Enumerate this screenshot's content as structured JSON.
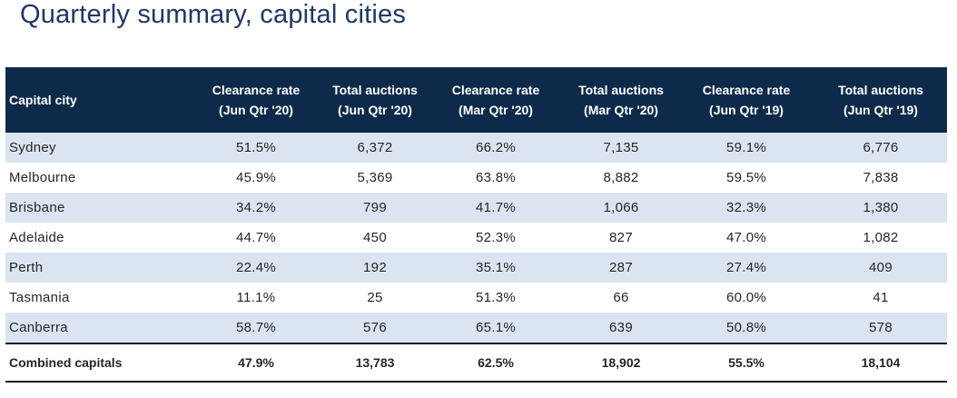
{
  "title": "Quarterly summary, capital cities",
  "table": {
    "headers": [
      {
        "line1": "Capital city",
        "line2": ""
      },
      {
        "line1": "Clearance rate",
        "line2": "(Jun Qtr '20)"
      },
      {
        "line1": "Total auctions",
        "line2": "(Jun Qtr '20)"
      },
      {
        "line1": "Clearance rate",
        "line2": "(Mar Qtr '20)"
      },
      {
        "line1": "Total auctions",
        "line2": "(Mar Qtr '20)"
      },
      {
        "line1": "Clearance rate",
        "line2": "(Jun Qtr '19)"
      },
      {
        "line1": "Total auctions",
        "line2": "(Jun Qtr '19)"
      }
    ],
    "rows": [
      [
        "Sydney",
        "51.5%",
        "6,372",
        "66.2%",
        "7,135",
        "59.1%",
        "6,776"
      ],
      [
        "Melbourne",
        "45.9%",
        "5,369",
        "63.8%",
        "8,882",
        "59.5%",
        "7,838"
      ],
      [
        "Brisbane",
        "34.2%",
        "799",
        "41.7%",
        "1,066",
        "32.3%",
        "1,380"
      ],
      [
        "Adelaide",
        "44.7%",
        "450",
        "52.3%",
        "827",
        "47.0%",
        "1,082"
      ],
      [
        "Perth",
        "22.4%",
        "192",
        "35.1%",
        "287",
        "27.4%",
        "409"
      ],
      [
        "Tasmania",
        "11.1%",
        "25",
        "51.3%",
        "66",
        "60.0%",
        "41"
      ],
      [
        "Canberra",
        "58.7%",
        "576",
        "65.1%",
        "639",
        "50.8%",
        "578"
      ]
    ],
    "total": [
      "Combined capitals",
      "47.9%",
      "13,783",
      "62.5%",
      "18,902",
      "55.5%",
      "18,104"
    ]
  },
  "colors": {
    "title": "#1f3864",
    "header_bg": "#0e2a4a",
    "header_text": "#ffffff",
    "band_row": "#dbe5f1",
    "plain_row": "#ffffff",
    "rule": "#1a1a1a"
  }
}
